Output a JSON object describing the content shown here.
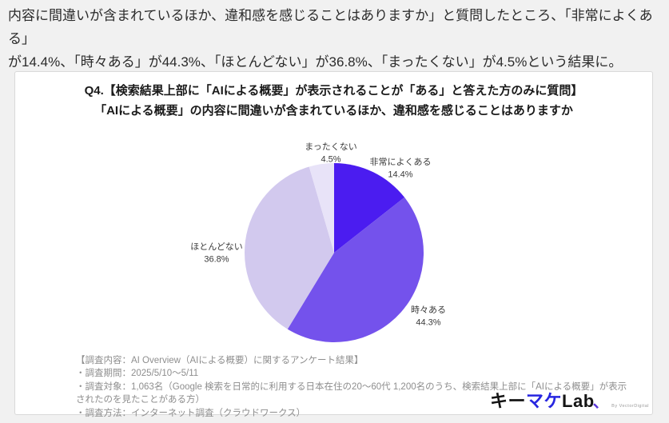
{
  "intro": {
    "line1": "内容に間違いが含まれているほか、違和感を感じることはありますか」と質問したところ、「非常によくある」",
    "line2": "が14.4%、「時々ある」が44.3%、「ほとんどない」が36.8%、「まったくない」が4.5%という結果に。"
  },
  "card": {
    "title_line1": "Q4.【検索結果上部に「AIによる概要」が表示されることが「ある」と答えた方のみに質問】",
    "title_line2": "「AIによる概要」の内容に間違いが含まれているほか、違和感を感じることはありますか",
    "notes": [
      "【調査内容：AI Overview（AIによる概要）に関するアンケート結果】",
      "・調査期間：2025/5/10〜5/11",
      "・調査対象：1,063名（Google 検索を日常的に利用する日本在住の20〜60代 1,200名のうち、検索結果上部に「AIによる概要」が表示されたのを見たことがある方）",
      "・調査方法：インターネット調査（クラウドワークス）"
    ],
    "logo": {
      "part_kana_black": "キー",
      "part_kana_blue": "マケ",
      "part_lab": "Lab",
      "comma": "、",
      "tagline": "By VectorDigital",
      "blue_hex": "#2726e0",
      "comma_hex": "#5b38d8"
    }
  },
  "chart_data": {
    "type": "pie",
    "title": "Q4.【検索結果上部に「AIによる概要」が表示されることが「ある」と答えた方のみに質問】「AIによる概要」の内容に間違いが含まれているほか、違和感を感じることはありますか",
    "labels": [
      "非常によくある",
      "時々ある",
      "ほとんどない",
      "まったくない"
    ],
    "values": [
      14.4,
      44.3,
      36.8,
      4.5
    ],
    "unit": "%",
    "colors": [
      "#4b1cf0",
      "#7452ec",
      "#d2c9ee",
      "#e8e3f8"
    ],
    "start_angle": "top",
    "direction": "clockwise",
    "legend": "none",
    "label_position": "outside"
  }
}
